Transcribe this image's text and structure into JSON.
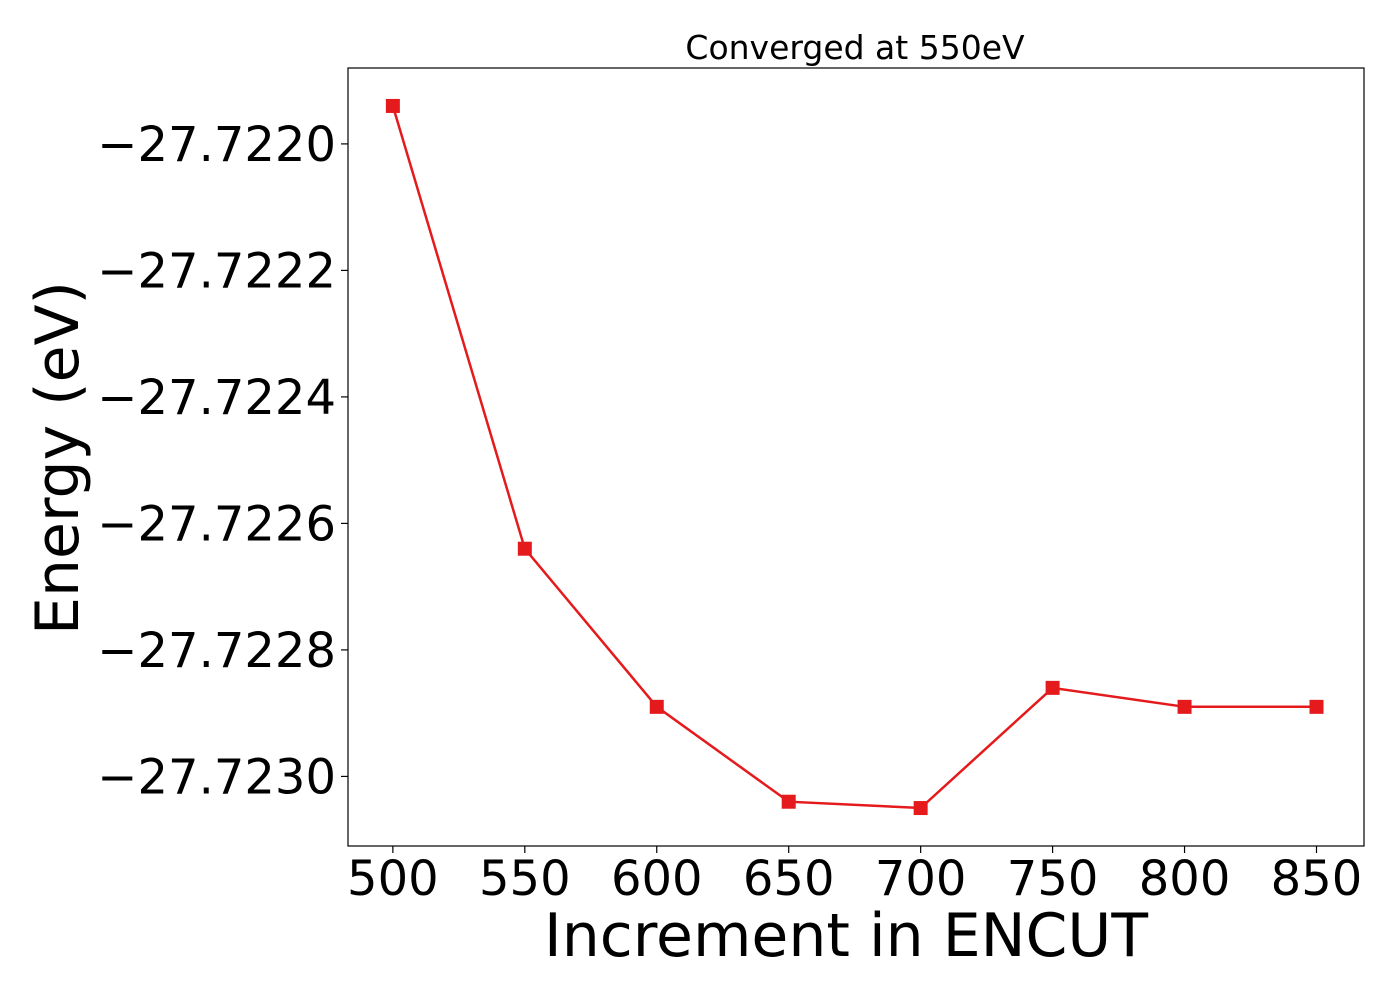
{
  "chart_data": {
    "type": "line",
    "title": "Converged at 550eV",
    "xlabel": "Increment in ENCUT",
    "ylabel": "Energy (eV)",
    "x": [
      500,
      550,
      600,
      650,
      700,
      750,
      800,
      850
    ],
    "x_ticks": [
      500,
      550,
      600,
      650,
      700,
      750,
      800,
      850
    ],
    "x_tick_labels": [
      "500",
      "550",
      "600",
      "650",
      "700",
      "750",
      "800",
      "850"
    ],
    "xlim": [
      483,
      868
    ],
    "y_ticks": [
      -27.722,
      -27.7222,
      -27.7224,
      -27.7226,
      -27.7228,
      -27.723
    ],
    "y_tick_labels": [
      "−27.7220",
      "−27.7222",
      "−27.7224",
      "−27.7226",
      "−27.7228",
      "−27.7230"
    ],
    "ylim": [
      -27.72311,
      -27.72188
    ],
    "grid": false,
    "series": [
      {
        "values": [
          -27.72194,
          -27.72264,
          -27.72289,
          -27.72304,
          -27.72305,
          -27.72286,
          -27.72289,
          -27.72289
        ],
        "color": "#e41a1c",
        "marker": "square"
      }
    ]
  }
}
